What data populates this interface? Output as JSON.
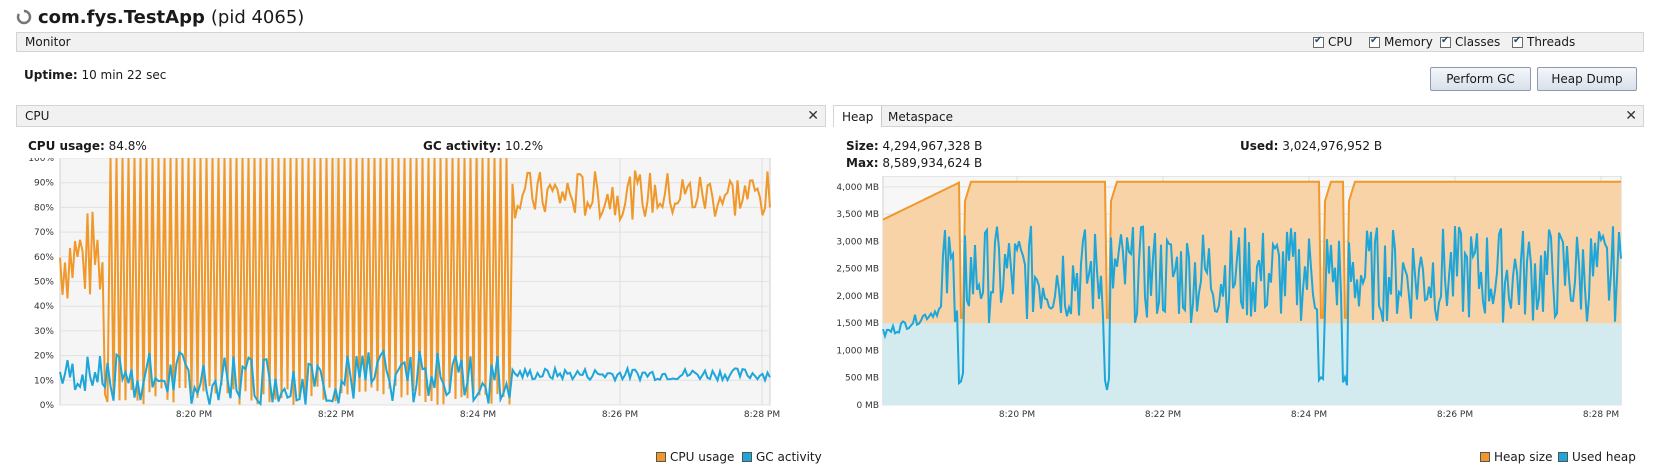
{
  "title": {
    "app_name": "com.fys.TestApp",
    "pid_text": "(pid 4065)"
  },
  "monitor": {
    "label": "Monitor",
    "checkboxes": [
      {
        "label": "CPU",
        "checked": true
      },
      {
        "label": "Memory",
        "checked": true
      },
      {
        "label": "Classes",
        "checked": true
      },
      {
        "label": "Threads",
        "checked": true
      }
    ]
  },
  "uptime": {
    "label": "Uptime:",
    "value": "10 min 22 sec"
  },
  "buttons": {
    "perform_gc": "Perform GC",
    "heap_dump": "Heap Dump"
  },
  "cpu_panel": {
    "title": "CPU",
    "cpu_usage_label": "CPU usage:",
    "cpu_usage_value": "84.8%",
    "gc_activity_label": "GC activity:",
    "gc_activity_value": "10.2%",
    "legend": {
      "cpu": "CPU usage",
      "gc": "GC activity"
    }
  },
  "heap_panel": {
    "tabs": [
      "Heap",
      "Metaspace"
    ],
    "size_label": "Size:",
    "size_value": "4,294,967,328 B",
    "used_label": "Used:",
    "used_value": "3,024,976,952 B",
    "max_label": "Max:",
    "max_value": "8,589,934,624 B",
    "legend": {
      "heap_size": "Heap size",
      "used_heap": "Used heap"
    }
  },
  "colors": {
    "orange": "#f0982a",
    "blue": "#1ea6d8",
    "orange_fill": "#f7d3a7",
    "blue_fill": "#cdeefa"
  },
  "chart_data": [
    {
      "type": "line",
      "title": "CPU",
      "ylabel": "",
      "y_ticks": [
        "0%",
        "10%",
        "20%",
        "30%",
        "40%",
        "50%",
        "60%",
        "70%",
        "80%",
        "90%",
        "100%"
      ],
      "x_ticks": [
        "8:20 PM",
        "8:22 PM",
        "8:24 PM",
        "8:26 PM",
        "8:28 PM"
      ],
      "ylim": [
        0,
        100
      ],
      "series": [
        {
          "name": "CPU usage",
          "summary": "oscillating 0-100% between ~8:18 and 8:24:30, then ~75-95%"
        },
        {
          "name": "GC activity",
          "summary": "0-25% spikes until ~8:24:30, then ~10-15%"
        }
      ]
    },
    {
      "type": "area",
      "title": "Heap",
      "y_ticks": [
        "0 MB",
        "500 MB",
        "1,000 MB",
        "1,500 MB",
        "2,000 MB",
        "2,500 MB",
        "3,000 MB",
        "3,500 MB",
        "4,000 MB"
      ],
      "x_ticks": [
        "8:20 PM",
        "8:22 PM",
        "8:24 PM",
        "8:26 PM",
        "8:28 PM"
      ],
      "ylim": [
        0,
        4200
      ],
      "series": [
        {
          "name": "Heap size",
          "summary": "~3,400 MB rising to ~4,096 MB plateaus, dropping near 8:19, 8:21, 8:24, 8:24:30"
        },
        {
          "name": "Used heap",
          "summary": "fluctuating ~500-3,800 MB, mostly 1,500-3,000 MB"
        }
      ]
    }
  ]
}
